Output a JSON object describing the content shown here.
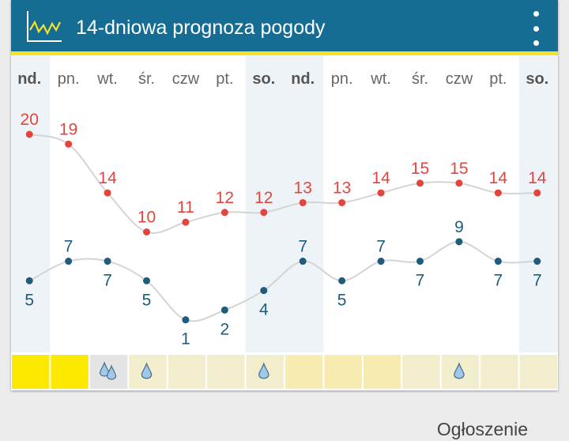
{
  "header": {
    "title": "14-dniowa prognoza pogody"
  },
  "days": [
    {
      "label": "nd.",
      "weekend": true,
      "precip_color": "#fde900",
      "precip_icon": null
    },
    {
      "label": "pn.",
      "weekend": false,
      "precip_color": "#fde900",
      "precip_icon": null
    },
    {
      "label": "wt.",
      "weekend": false,
      "precip_color": "#e4e4e4",
      "precip_icon": "double-raindrop-icon"
    },
    {
      "label": "śr.",
      "weekend": false,
      "precip_color": "#f2edcc",
      "precip_icon": "raindrop-icon"
    },
    {
      "label": "czw",
      "weekend": false,
      "precip_color": "#f2edcc",
      "precip_icon": null
    },
    {
      "label": "pt.",
      "weekend": false,
      "precip_color": "#f2edcc",
      "precip_icon": null
    },
    {
      "label": "so.",
      "weekend": true,
      "precip_color": "#f2edcc",
      "precip_icon": "raindrop-icon"
    },
    {
      "label": "nd.",
      "weekend": true,
      "precip_color": "#f7ebb0",
      "precip_icon": null
    },
    {
      "label": "pn.",
      "weekend": false,
      "precip_color": "#f7ebb0",
      "precip_icon": null
    },
    {
      "label": "wt.",
      "weekend": false,
      "precip_color": "#f7ebb0",
      "precip_icon": null
    },
    {
      "label": "śr.",
      "weekend": false,
      "precip_color": "#f2edcc",
      "precip_icon": null
    },
    {
      "label": "czw",
      "weekend": false,
      "precip_color": "#f2edcc",
      "precip_icon": "raindrop-icon"
    },
    {
      "label": "pt.",
      "weekend": false,
      "precip_color": "#f2edcc",
      "precip_icon": null
    },
    {
      "label": "so.",
      "weekend": true,
      "precip_color": "#f2edcc",
      "precip_icon": null
    }
  ],
  "chart_data": {
    "type": "line",
    "x": [
      "nd.",
      "pn.",
      "wt.",
      "śr.",
      "czw",
      "pt.",
      "so.",
      "nd.",
      "pn.",
      "wt.",
      "śr.",
      "czw",
      "pt.",
      "so."
    ],
    "series": [
      {
        "values": [
          20,
          19,
          14,
          10,
          11,
          12,
          12,
          13,
          13,
          14,
          15,
          15,
          14,
          14
        ],
        "color": "#e2453c"
      },
      {
        "values": [
          5,
          7,
          7,
          5,
          1,
          2,
          4,
          7,
          5,
          7,
          7,
          9,
          7,
          7
        ],
        "color": "#1f5b7a"
      }
    ],
    "grid": false
  },
  "colors": {
    "header_bg": "#156d93",
    "header_accent": "#f4e12c",
    "weekend_bg": "#eef3f7",
    "max_temp": "#e2453c",
    "min_temp": "#1f5b7a",
    "curve": "#d4d4d4",
    "raindrop": "#9fc8ea"
  },
  "ad": {
    "label": "Ogłoszenie"
  }
}
